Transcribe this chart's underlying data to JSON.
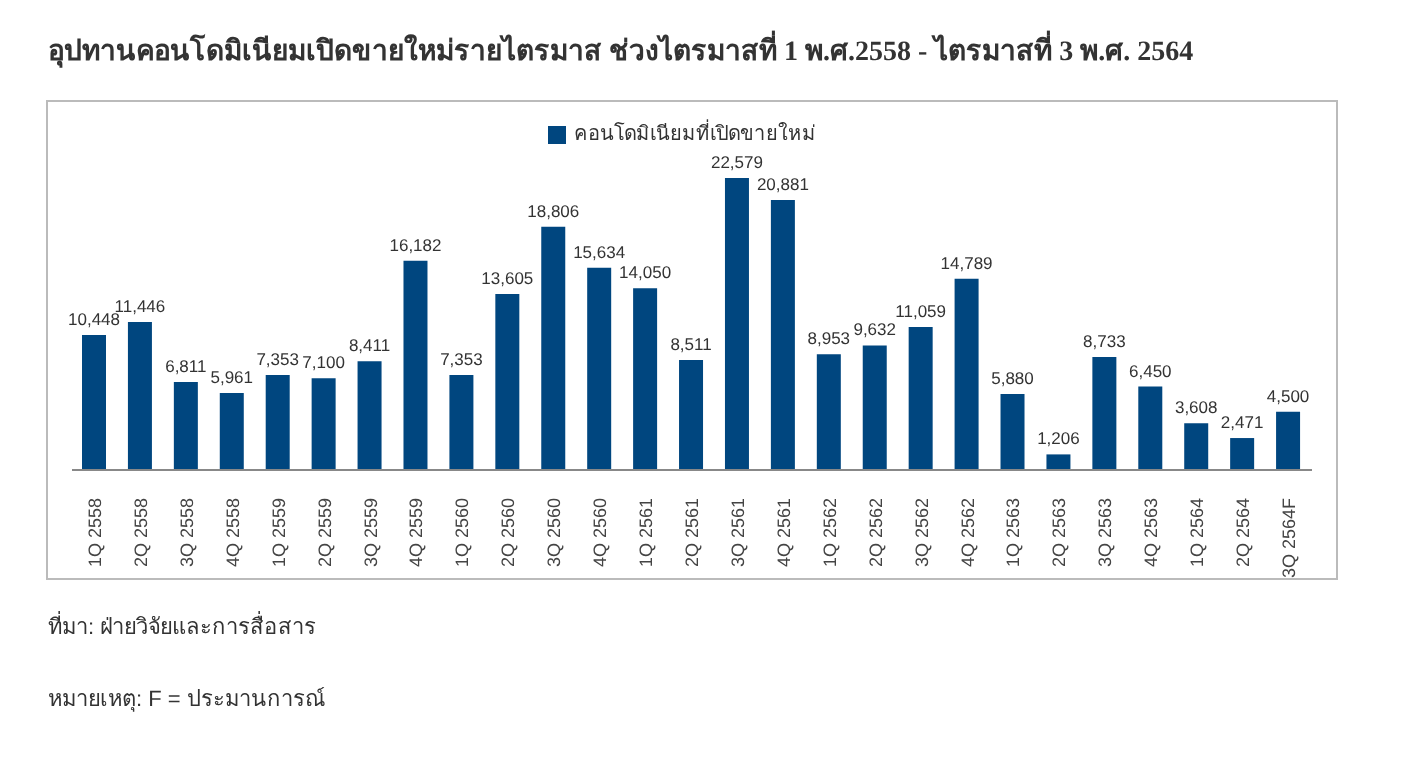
{
  "chart_data": {
    "type": "bar",
    "title": "อุปทานคอนโดมิเนียมเปิดขายใหม่รายไตรมาส ช่วงไตรมาสที่ 1 พ.ศ.2558 - ไตรมาสที่ 3 พ.ศ. 2564",
    "categories": [
      "1Q 2558",
      "2Q 2558",
      "3Q 2558",
      "4Q 2558",
      "1Q 2559",
      "2Q 2559",
      "3Q 2559",
      "4Q 2559",
      "1Q 2560",
      "2Q 2560",
      "3Q 2560",
      "4Q 2560",
      "1Q 2561",
      "2Q 2561",
      "3Q 2561",
      "4Q 2561",
      "1Q 2562",
      "2Q 2562",
      "3Q 2562",
      "4Q 2562",
      "1Q 2563",
      "2Q 2563",
      "3Q 2563",
      "4Q 2563",
      "1Q 2564",
      "2Q 2564",
      "3Q 2564F"
    ],
    "series": [
      {
        "name": "คอนโดมิเนียมที่เปิดขายใหม่",
        "color": "#00467f",
        "values": [
          10448,
          11446,
          6811,
          5961,
          7353,
          7100,
          8411,
          16182,
          7353,
          13605,
          18806,
          15634,
          14050,
          8511,
          22579,
          20881,
          8953,
          9632,
          11059,
          14789,
          5880,
          1206,
          8733,
          6450,
          3608,
          2471,
          4500
        ],
        "value_labels": [
          "10,448",
          "11,446",
          "6,811",
          "5,961",
          "7,353",
          "7,100",
          "8,411",
          "16,182",
          "7,353",
          "13,605",
          "18,806",
          "15,634",
          "14,050",
          "8,511",
          "22,579",
          "20,881",
          "8,953",
          "9,632",
          "11,059",
          "14,789",
          "5,880",
          "1,206",
          "8,733",
          "6,450",
          "3,608",
          "2,471",
          "4,500"
        ]
      }
    ],
    "legend": "top",
    "tick_labels": "x",
    "annotations": [
      "ที่มา: ฝ่ายวิจัยและการสื่อสาร",
      "หมายเหตุ: F = ประมานการณ์"
    ]
  }
}
